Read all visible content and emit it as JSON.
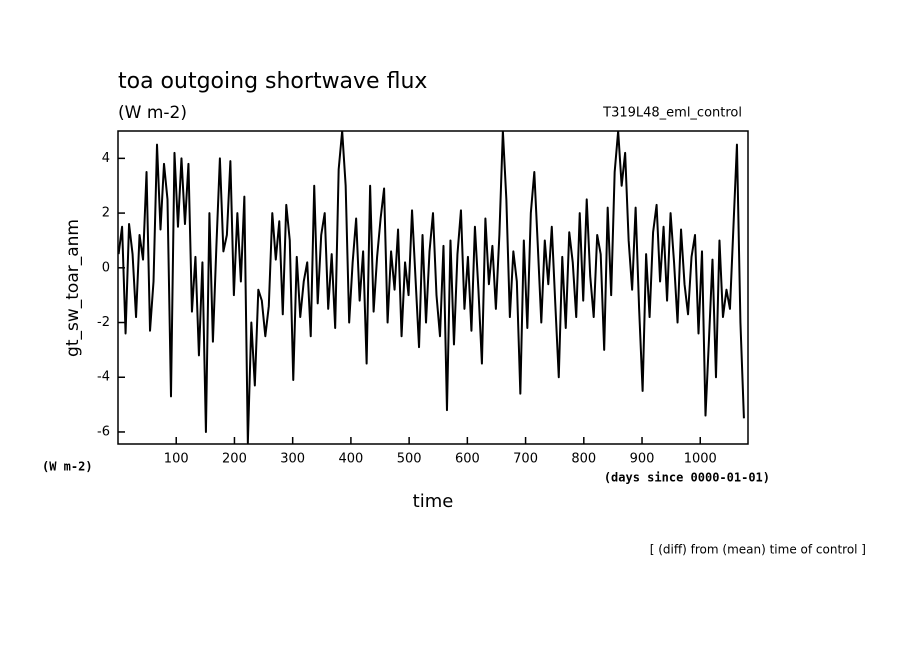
{
  "chart_data": {
    "type": "line",
    "title": "toa outgoing shortwave flux",
    "subtitle": "(W m-2)",
    "annotation": "T319L48_eml_control",
    "y_label": "gt_sw_toar_anm",
    "y_units": "(W m-2)",
    "x_units": "(days since 0000-01-01)",
    "x_label": "time",
    "footnote": "[ (diff) from (mean) time of control ]",
    "color": "#000000",
    "x": [
      1,
      7,
      13,
      19,
      25,
      31,
      37,
      43,
      49,
      55,
      61,
      67,
      73,
      79,
      85,
      91,
      97,
      103,
      109,
      115,
      121,
      127,
      133,
      139,
      145,
      151,
      157,
      163,
      169,
      175,
      181,
      187,
      193,
      199,
      205,
      211,
      217,
      223,
      229,
      235,
      241,
      247,
      253,
      259,
      265,
      271,
      277,
      283,
      289,
      295,
      301,
      307,
      313,
      319,
      325,
      331,
      337,
      343,
      349,
      355,
      361,
      367,
      373,
      379,
      385,
      391,
      397,
      403,
      409,
      415,
      421,
      427,
      433,
      439,
      445,
      451,
      457,
      463,
      469,
      475,
      481,
      487,
      493,
      499,
      505,
      511,
      517,
      523,
      529,
      535,
      541,
      547,
      553,
      559,
      565,
      571,
      577,
      583,
      589,
      595,
      601,
      607,
      613,
      619,
      625,
      631,
      637,
      643,
      649,
      655,
      661,
      667,
      673,
      679,
      685,
      691,
      697,
      703,
      709,
      715,
      721,
      727,
      733,
      739,
      745,
      751,
      757,
      763,
      769,
      775,
      781,
      787,
      793,
      799,
      805,
      811,
      817,
      823,
      829,
      835,
      841,
      847,
      853,
      859,
      865,
      871,
      877,
      883,
      889,
      895,
      901,
      907,
      913,
      919,
      925,
      931,
      937,
      943,
      949,
      955,
      961,
      967,
      973,
      979,
      985,
      991,
      997,
      1003,
      1009,
      1015,
      1021,
      1027,
      1033,
      1039,
      1045,
      1051,
      1057,
      1063,
      1069,
      1075
    ],
    "values": [
      0.5,
      1.5,
      -2.4,
      1.6,
      0.5,
      -1.8,
      1.2,
      0.3,
      3.5,
      -2.3,
      -0.5,
      4.5,
      1.4,
      3.8,
      2.5,
      -4.7,
      4.2,
      1.5,
      4.0,
      1.6,
      3.8,
      -1.6,
      0.4,
      -3.2,
      0.2,
      -6.0,
      2.0,
      -2.7,
      0.8,
      4.0,
      0.6,
      1.2,
      3.9,
      -1.0,
      2.0,
      -0.5,
      2.6,
      -6.4,
      -2.0,
      -4.3,
      -0.8,
      -1.2,
      -2.5,
      -1.4,
      2.0,
      0.3,
      1.7,
      -1.7,
      2.3,
      1.0,
      -4.1,
      0.4,
      -1.8,
      -0.5,
      0.2,
      -2.5,
      3.0,
      -1.3,
      1.2,
      2.0,
      -1.5,
      0.5,
      -2.2,
      3.6,
      5.0,
      3.0,
      -2.0,
      0.2,
      1.8,
      -1.2,
      0.6,
      -3.5,
      3.0,
      -1.6,
      0.4,
      1.8,
      2.9,
      -2.0,
      0.6,
      -0.8,
      1.4,
      -2.5,
      0.2,
      -1.0,
      2.1,
      -0.4,
      -2.9,
      1.2,
      -2.0,
      0.6,
      2.0,
      -1.0,
      -2.5,
      0.8,
      -5.2,
      1.0,
      -2.8,
      0.5,
      2.1,
      -1.5,
      0.4,
      -2.3,
      1.5,
      -0.8,
      -3.5,
      1.8,
      -0.6,
      0.8,
      -1.5,
      1.2,
      5.0,
      2.5,
      -1.8,
      0.6,
      -0.5,
      -4.6,
      1.0,
      -2.2,
      2.0,
      3.5,
      0.8,
      -2.0,
      1.0,
      -0.6,
      1.5,
      -1.3,
      -4.0,
      0.4,
      -2.2,
      1.3,
      0.2,
      -1.8,
      2.0,
      -1.2,
      2.5,
      -0.3,
      -1.8,
      1.2,
      0.5,
      -3.0,
      2.2,
      -1.0,
      3.5,
      5.0,
      3.0,
      4.2,
      1.0,
      -0.8,
      2.2,
      -1.5,
      -4.5,
      0.5,
      -1.8,
      1.3,
      2.3,
      -0.5,
      1.5,
      -1.2,
      2.0,
      0.2,
      -2.0,
      1.4,
      -0.6,
      -1.7,
      0.4,
      1.2,
      -2.4,
      0.6,
      -5.4,
      -2.6,
      0.3,
      -4.0,
      1.0,
      -1.8,
      -0.8,
      -1.5,
      1.5,
      4.5,
      -2.0,
      -5.5
    ],
    "xlim": [
      0,
      1082
    ],
    "xticks": [
      100,
      200,
      300,
      400,
      500,
      600,
      700,
      800,
      900,
      1000
    ],
    "ylim": [
      -6.44,
      5
    ],
    "yticks": [
      -6,
      -4,
      -2,
      0,
      2,
      4
    ],
    "grid": false
  }
}
